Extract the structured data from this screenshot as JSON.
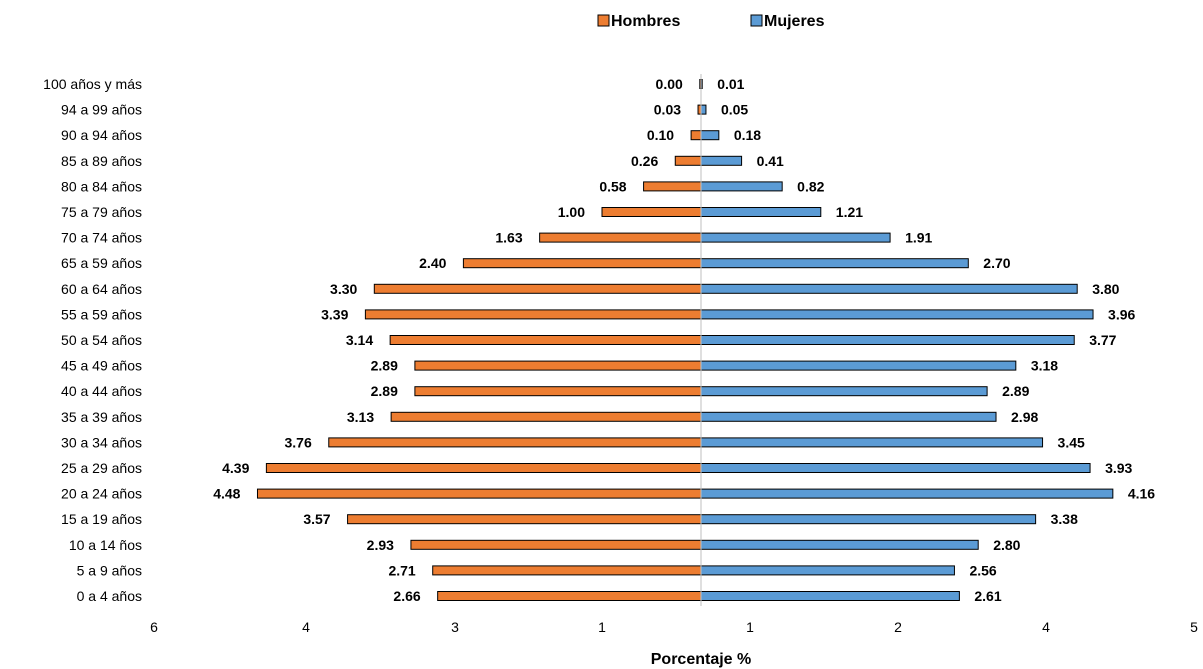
{
  "chart_data": {
    "type": "bar",
    "orientation": "horizontal",
    "layout": "population-pyramid",
    "categories": [
      "0 a 4 años",
      "5 a 9 años",
      "10 a 14 ños",
      "15 a 19 años",
      "20 a 24 años",
      "25 a 29 años",
      "30 a 34 años",
      "35 a 39 años",
      "40 a 44 años",
      "45 a 49 años",
      "50 a 54 años",
      "55 a 59 años",
      "60 a 64 años",
      "65 a 59 años",
      "70 a 74 años",
      "75 a 79 años",
      "80 a 84 años",
      "85 a 89 años",
      "90 a 94 años",
      "94 a 99 años",
      "100 años y más"
    ],
    "series": [
      {
        "name": "Hombres",
        "side": "left",
        "color": "#ED7D31",
        "values": [
          2.66,
          2.71,
          2.93,
          3.57,
          4.48,
          4.39,
          3.76,
          3.13,
          2.89,
          2.89,
          3.14,
          3.39,
          3.3,
          2.4,
          1.63,
          1.0,
          0.58,
          0.26,
          0.1,
          0.03,
          0.0
        ],
        "labels": [
          "2.66",
          "2.71",
          "2.93",
          "3.57",
          "4.48",
          "4.39",
          "3.76",
          "3.13",
          "2.89",
          "2.89",
          "3.14",
          "3.39",
          "3.30",
          "2.40",
          "1.63",
          "1.00",
          "0.58",
          "0.26",
          "0.10",
          "0.03",
          "0.00"
        ]
      },
      {
        "name": "Mujeres",
        "side": "right",
        "color": "#5B9BD5",
        "values": [
          2.61,
          2.56,
          2.8,
          3.38,
          4.16,
          3.93,
          3.45,
          2.98,
          2.89,
          3.18,
          3.77,
          3.96,
          3.8,
          2.7,
          1.91,
          1.21,
          0.82,
          0.41,
          0.18,
          0.05,
          0.01
        ],
        "labels": [
          "2.61",
          "2.56",
          "2.80",
          "3.38",
          "4.16",
          "3.93",
          "3.45",
          "2.98",
          "2.89",
          "3.18",
          "3.77",
          "3.96",
          "3.80",
          "2.70",
          "1.91",
          "1.21",
          "0.82",
          "0.41",
          "0.18",
          "0.05",
          "0.01"
        ]
      }
    ],
    "xlabel": "Porcentaje %",
    "xlim": [
      -6,
      5
    ],
    "x_tick_labels": [
      "6",
      "4",
      "3",
      "1",
      "1",
      "2",
      "4",
      "5"
    ],
    "legend": "top-center",
    "grid": false
  }
}
